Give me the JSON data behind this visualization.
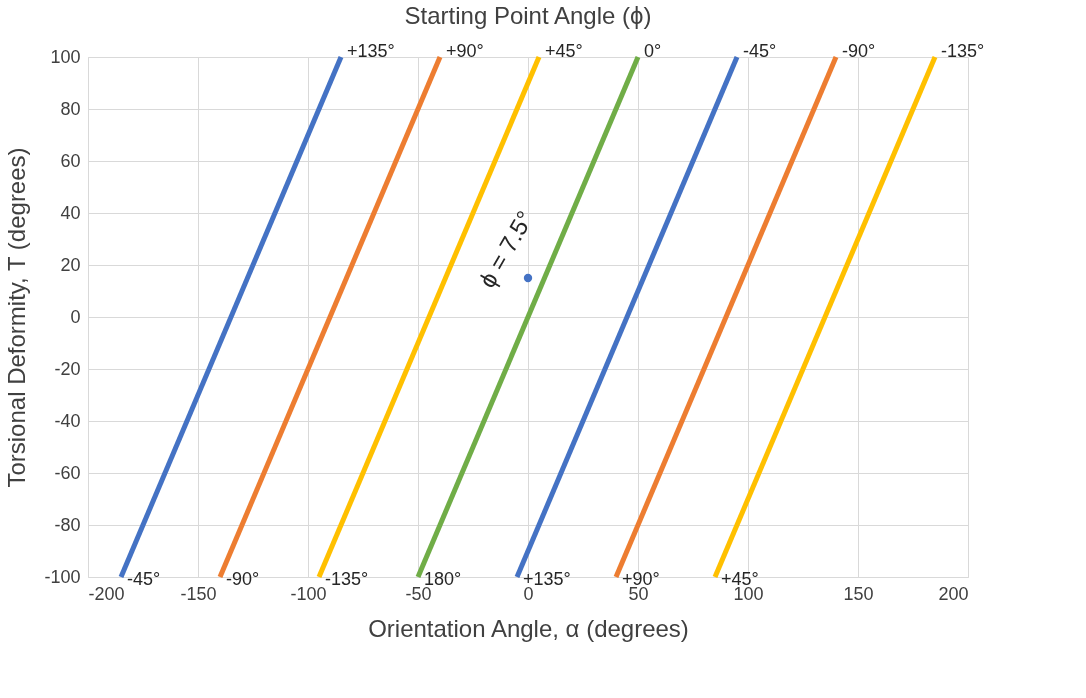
{
  "chart_data": {
    "type": "line",
    "title": "Starting Point Angle (ϕ)",
    "xlabel": "Orientation Angle, α (degrees)",
    "ylabel": "Torsional Deformity, T (degrees)",
    "series": [
      {
        "color": "#4472c4",
        "x": [
          -185,
          -85
        ],
        "values": [
          -100,
          100
        ]
      },
      {
        "color": "#ed7d31",
        "x": [
          -140,
          -40
        ],
        "values": [
          -100,
          100
        ]
      },
      {
        "color": "#ffc000",
        "x": [
          -95,
          5
        ],
        "values": [
          -100,
          100
        ]
      },
      {
        "color": "#70ad47",
        "x": [
          -50,
          50
        ],
        "values": [
          -100,
          100
        ]
      },
      {
        "color": "#4472c4",
        "x": [
          -5,
          95
        ],
        "values": [
          -100,
          100
        ]
      },
      {
        "color": "#ed7d31",
        "x": [
          40,
          140
        ],
        "values": [
          -100,
          100
        ]
      },
      {
        "color": "#ffc000",
        "x": [
          85,
          185
        ],
        "values": [
          -100,
          100
        ]
      },
      {
        "type": "scatter",
        "marker": "circle",
        "color": "#4472c4",
        "x": [
          0
        ],
        "values": [
          15
        ]
      }
    ],
    "annotations": [
      {
        "text": "+135°",
        "x": -85,
        "y": 100
      },
      {
        "text": "+90°",
        "x": -40,
        "y": 100
      },
      {
        "text": "+45°",
        "x": 5,
        "y": 100
      },
      {
        "text": "0°",
        "x": 50,
        "y": 100
      },
      {
        "text": "-45°",
        "x": 95,
        "y": 100
      },
      {
        "text": "-90°",
        "x": 140,
        "y": 100
      },
      {
        "text": "-135°",
        "x": 185,
        "y": 100
      },
      {
        "text": "-45°",
        "x": -185,
        "y": -100
      },
      {
        "text": "-90°",
        "x": -140,
        "y": -100
      },
      {
        "text": "-135°",
        "x": -95,
        "y": -100
      },
      {
        "text": "180°",
        "x": -50,
        "y": -100
      },
      {
        "text": "+135°",
        "x": -5,
        "y": -100
      },
      {
        "text": "+90°",
        "x": 40,
        "y": -100
      },
      {
        "text": "+45°",
        "x": 85,
        "y": -100
      },
      {
        "text": "ϕ = 7.5°",
        "x": 0,
        "y": 15
      }
    ],
    "xlim": [
      -200,
      200
    ],
    "xticks": [
      -200,
      -150,
      -100,
      -50,
      0,
      50,
      100,
      150,
      200
    ],
    "ylim": [
      -100,
      100
    ],
    "yticks": [
      -100,
      -80,
      -60,
      -40,
      -20,
      0,
      20,
      40,
      60,
      80,
      100
    ],
    "grid": true,
    "line_style": "solid"
  }
}
